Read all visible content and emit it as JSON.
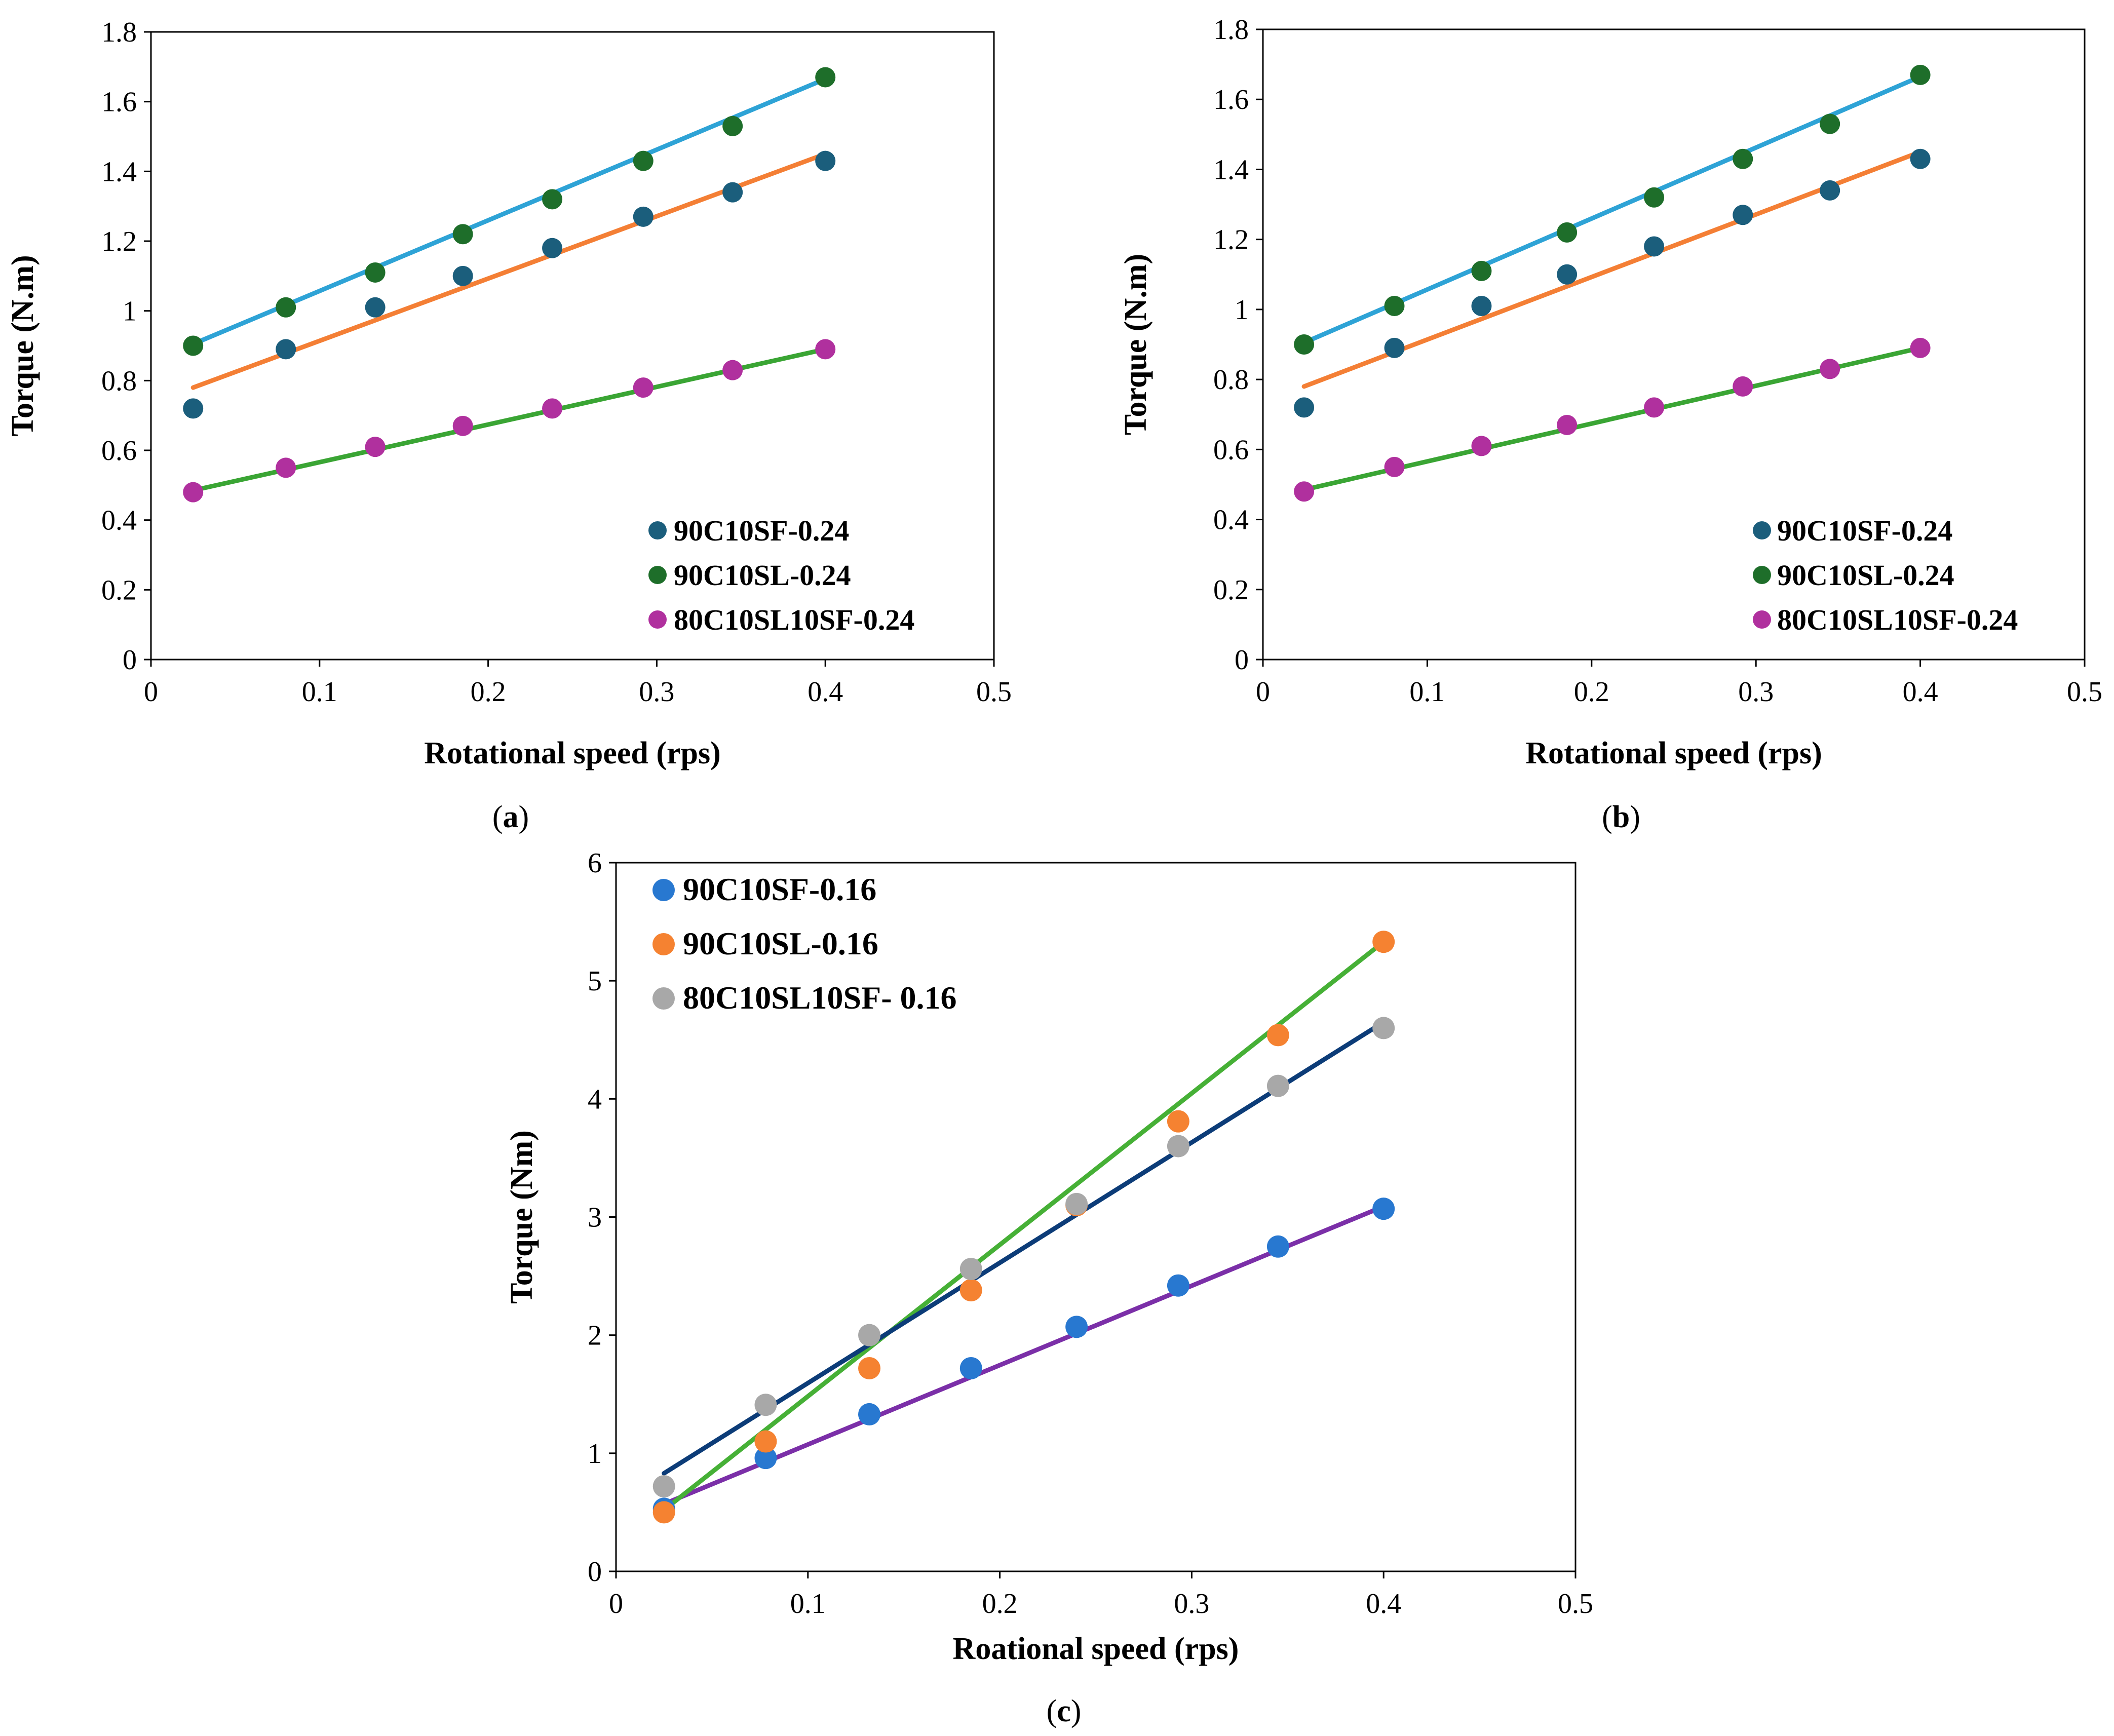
{
  "chart_data": [
    {
      "type": "scatter",
      "caption": "a",
      "xlabel": "Rotational speed (rps)",
      "ylabel": "Torque (N.m)",
      "xlim": [
        0,
        0.5
      ],
      "ylim": [
        0,
        1.8
      ],
      "xticks": [
        "0",
        "0.1",
        "0.2",
        "0.3",
        "0.4",
        "0.5"
      ],
      "yticks": [
        "0",
        "0.2",
        "0.4",
        "0.6",
        "0.8",
        "1",
        "1.2",
        "1.4",
        "1.6",
        "1.8"
      ],
      "grid": false,
      "legend_position": "bottom-right",
      "series": [
        {
          "name": "90C10SF-0.24",
          "color": "#1b5e7c",
          "x": [
            0.025,
            0.08,
            0.133,
            0.185,
            0.238,
            0.292,
            0.345,
            0.4
          ],
          "y": [
            0.72,
            0.89,
            1.01,
            1.1,
            1.18,
            1.27,
            1.34,
            1.43
          ],
          "fit": {
            "color": "#f47f35",
            "x": [
              0.025,
              0.4
            ],
            "y": [
              0.78,
              1.45
            ]
          }
        },
        {
          "name": "90C10SL-0.24",
          "color": "#1e6e2a",
          "x": [
            0.025,
            0.08,
            0.133,
            0.185,
            0.238,
            0.292,
            0.345,
            0.4
          ],
          "y": [
            0.9,
            1.01,
            1.11,
            1.22,
            1.32,
            1.43,
            1.53,
            1.67
          ],
          "fit": {
            "color": "#2ea3d6",
            "x": [
              0.025,
              0.4
            ],
            "y": [
              0.905,
              1.665
            ]
          }
        },
        {
          "name": "80C10SL10SF-0.24",
          "color": "#b0309e",
          "x": [
            0.025,
            0.08,
            0.133,
            0.185,
            0.238,
            0.292,
            0.345,
            0.4
          ],
          "y": [
            0.48,
            0.55,
            0.61,
            0.67,
            0.72,
            0.78,
            0.83,
            0.89
          ],
          "fit": {
            "color": "#3aa534",
            "x": [
              0.025,
              0.4
            ],
            "y": [
              0.485,
              0.89
            ]
          }
        }
      ]
    },
    {
      "type": "scatter",
      "caption": "b",
      "xlabel": "Rotational speed (rps)",
      "ylabel": "Torque (N.m)",
      "xlim": [
        0,
        0.5
      ],
      "ylim": [
        0,
        1.8
      ],
      "xticks": [
        "0",
        "0.1",
        "0.2",
        "0.3",
        "0.4",
        "0.5"
      ],
      "yticks": [
        "0",
        "0.2",
        "0.4",
        "0.6",
        "0.8",
        "1",
        "1.2",
        "1.4",
        "1.6",
        "1.8"
      ],
      "grid": false,
      "legend_position": "bottom-right",
      "series": [
        {
          "name": "90C10SF-0.24",
          "color": "#1b5e7c",
          "x": [
            0.025,
            0.08,
            0.133,
            0.185,
            0.238,
            0.292,
            0.345,
            0.4
          ],
          "y": [
            0.72,
            0.89,
            1.01,
            1.1,
            1.18,
            1.27,
            1.34,
            1.43
          ],
          "fit": {
            "color": "#f47f35",
            "x": [
              0.025,
              0.4
            ],
            "y": [
              0.78,
              1.45
            ]
          }
        },
        {
          "name": "90C10SL-0.24",
          "color": "#1e6e2a",
          "x": [
            0.025,
            0.08,
            0.133,
            0.185,
            0.238,
            0.292,
            0.345,
            0.4
          ],
          "y": [
            0.9,
            1.01,
            1.11,
            1.22,
            1.32,
            1.43,
            1.53,
            1.67
          ],
          "fit": {
            "color": "#2ea3d6",
            "x": [
              0.025,
              0.4
            ],
            "y": [
              0.905,
              1.665
            ]
          }
        },
        {
          "name": "80C10SL10SF-0.24",
          "color": "#b0309e",
          "x": [
            0.025,
            0.08,
            0.133,
            0.185,
            0.238,
            0.292,
            0.345,
            0.4
          ],
          "y": [
            0.48,
            0.55,
            0.61,
            0.67,
            0.72,
            0.78,
            0.83,
            0.89
          ],
          "fit": {
            "color": "#3aa534",
            "x": [
              0.025,
              0.4
            ],
            "y": [
              0.485,
              0.89
            ]
          }
        }
      ]
    },
    {
      "type": "scatter",
      "caption": "c",
      "xlabel": "Roational speed (rps)",
      "ylabel": "Torque (Nm)",
      "xlim": [
        0,
        0.5
      ],
      "ylim": [
        0,
        6
      ],
      "xticks": [
        "0",
        "0.1",
        "0.2",
        "0.3",
        "0.4",
        "0.5"
      ],
      "yticks": [
        "0",
        "1",
        "2",
        "3",
        "4",
        "5",
        "6"
      ],
      "grid": false,
      "legend_position": "top-left",
      "series": [
        {
          "name": "90C10SF-0.16",
          "color": "#2878d0",
          "x": [
            0.025,
            0.078,
            0.132,
            0.185,
            0.24,
            0.293,
            0.345,
            0.4
          ],
          "y": [
            0.53,
            0.96,
            1.33,
            1.72,
            2.07,
            2.42,
            2.75,
            3.07
          ],
          "fit": {
            "color": "#7b2fa8",
            "x": [
              0.025,
              0.4
            ],
            "y": [
              0.57,
              3.09
            ]
          }
        },
        {
          "name": "90C10SL-0.16",
          "color": "#f58231",
          "x": [
            0.025,
            0.078,
            0.132,
            0.185,
            0.24,
            0.293,
            0.345,
            0.4
          ],
          "y": [
            0.5,
            1.1,
            1.72,
            2.38,
            3.1,
            3.81,
            4.54,
            5.33
          ],
          "fit": {
            "color": "#46b036",
            "x": [
              0.025,
              0.4
            ],
            "y": [
              0.52,
              5.33
            ]
          }
        },
        {
          "name": "80C10SL10SF- 0.16",
          "color": "#a8a8a8",
          "x": [
            0.025,
            0.078,
            0.132,
            0.185,
            0.24,
            0.293,
            0.345,
            0.4
          ],
          "y": [
            0.72,
            1.41,
            2.0,
            2.56,
            3.11,
            3.6,
            4.11,
            4.6
          ],
          "fit": {
            "color": "#0c3c78",
            "x": [
              0.025,
              0.4
            ],
            "y": [
              0.83,
              4.65
            ]
          }
        }
      ]
    }
  ]
}
